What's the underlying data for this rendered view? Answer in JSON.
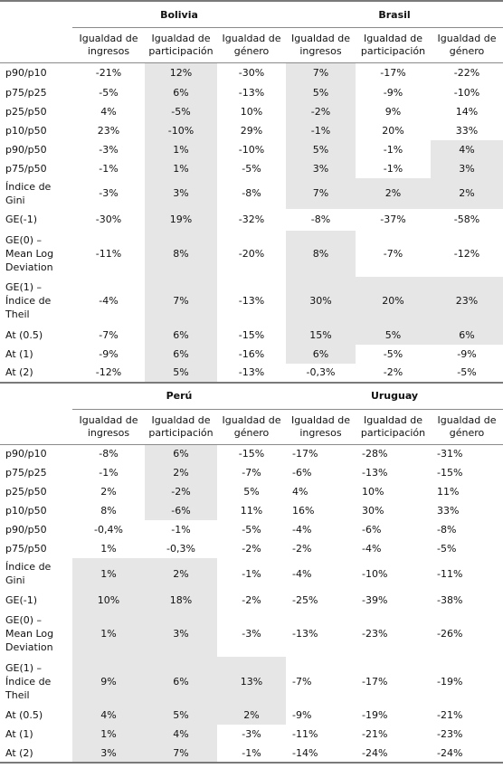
{
  "column_headers": [
    "Igualdad de ingresos",
    "Igualdad de participación",
    "Igualdad de género",
    "Igualdad de ingresos",
    "Igualdad de participación",
    "Igualdad de género"
  ],
  "panels": [
    {
      "countries": [
        "Bolivia",
        "Brasil"
      ],
      "rows": [
        {
          "label": "p90/p10",
          "values": [
            "-21%",
            "12%",
            "-30%",
            "7%",
            "-17%",
            "-22%"
          ]
        },
        {
          "label": "p75/p25",
          "values": [
            "-5%",
            "6%",
            "-13%",
            "5%",
            "-9%",
            "-10%"
          ]
        },
        {
          "label": "p25/p50",
          "values": [
            "4%",
            "-5%",
            "10%",
            "-2%",
            "9%",
            "14%"
          ]
        },
        {
          "label": "p10/p50",
          "values": [
            "23%",
            "-10%",
            "29%",
            "-1%",
            "20%",
            "33%"
          ]
        },
        {
          "label": "p90/p50",
          "values": [
            "-3%",
            "1%",
            "-10%",
            "5%",
            "-1%",
            "4%"
          ]
        },
        {
          "label": "p75/p50",
          "values": [
            "-1%",
            "1%",
            "-5%",
            "3%",
            "-1%",
            "3%"
          ]
        },
        {
          "label": "Índice de Gini",
          "values": [
            "-3%",
            "3%",
            "-8%",
            "7%",
            "2%",
            "2%"
          ]
        },
        {
          "label": "GE(-1)",
          "values": [
            "-30%",
            "19%",
            "-32%",
            "-8%",
            "-37%",
            "-58%"
          ]
        },
        {
          "label": "GE(0) – Mean Log Deviation",
          "values": [
            "-11%",
            "8%",
            "-20%",
            "8%",
            "-7%",
            "-12%"
          ]
        },
        {
          "label": "GE(1) – Índice de Theil",
          "values": [
            "-4%",
            "7%",
            "-13%",
            "30%",
            "20%",
            "23%"
          ]
        },
        {
          "label": "At (0.5)",
          "values": [
            "-7%",
            "6%",
            "-15%",
            "15%",
            "5%",
            "6%"
          ]
        },
        {
          "label": "At (1)",
          "values": [
            "-9%",
            "6%",
            "-16%",
            "6%",
            "-5%",
            "-9%"
          ]
        },
        {
          "label": "At (2)",
          "values": [
            "-12%",
            "5%",
            "-13%",
            "-0,3%",
            "-2%",
            "-5%"
          ]
        }
      ]
    },
    {
      "countries": [
        "Perú",
        "Uruguay"
      ],
      "rows": [
        {
          "label": "p90/p10",
          "values": [
            "-8%",
            "6%",
            "-15%",
            "-17%",
            "-28%",
            "-31%"
          ]
        },
        {
          "label": "p75/p25",
          "values": [
            "-1%",
            "2%",
            "-7%",
            "-6%",
            "-13%",
            "-15%"
          ]
        },
        {
          "label": "p25/p50",
          "values": [
            "2%",
            "-2%",
            "5%",
            "4%",
            "10%",
            "11%"
          ]
        },
        {
          "label": "p10/p50",
          "values": [
            "8%",
            "-6%",
            "11%",
            "16%",
            "30%",
            "33%"
          ]
        },
        {
          "label": "p90/p50",
          "values": [
            "-0,4%",
            "-1%",
            "-5%",
            "-4%",
            "-6%",
            "-8%"
          ]
        },
        {
          "label": "p75/p50",
          "values": [
            "1%",
            "-0,3%",
            "-2%",
            "-2%",
            "-4%",
            "-5%"
          ]
        },
        {
          "label": "Índice de Gini",
          "values": [
            "1%",
            "2%",
            "-1%",
            "-4%",
            "-10%",
            "-11%"
          ]
        },
        {
          "label": "GE(-1)",
          "values": [
            "10%",
            "18%",
            "-2%",
            "-25%",
            "-39%",
            "-38%"
          ]
        },
        {
          "label": "GE(0) – Mean Log Deviation",
          "values": [
            "1%",
            "3%",
            "-3%",
            "-13%",
            "-23%",
            "-26%"
          ]
        },
        {
          "label": "GE(1) – Índice de Theil",
          "values": [
            "9%",
            "6%",
            "13%",
            "-7%",
            "-17%",
            "-19%"
          ]
        },
        {
          "label": "At (0.5)",
          "values": [
            "4%",
            "5%",
            "2%",
            "-9%",
            "-19%",
            "-21%"
          ]
        },
        {
          "label": "At (1)",
          "values": [
            "1%",
            "4%",
            "-3%",
            "-11%",
            "-21%",
            "-23%"
          ]
        },
        {
          "label": "At (2)",
          "values": [
            "3%",
            "7%",
            "-1%",
            "-14%",
            "-24%",
            "-24%"
          ]
        }
      ]
    }
  ]
}
